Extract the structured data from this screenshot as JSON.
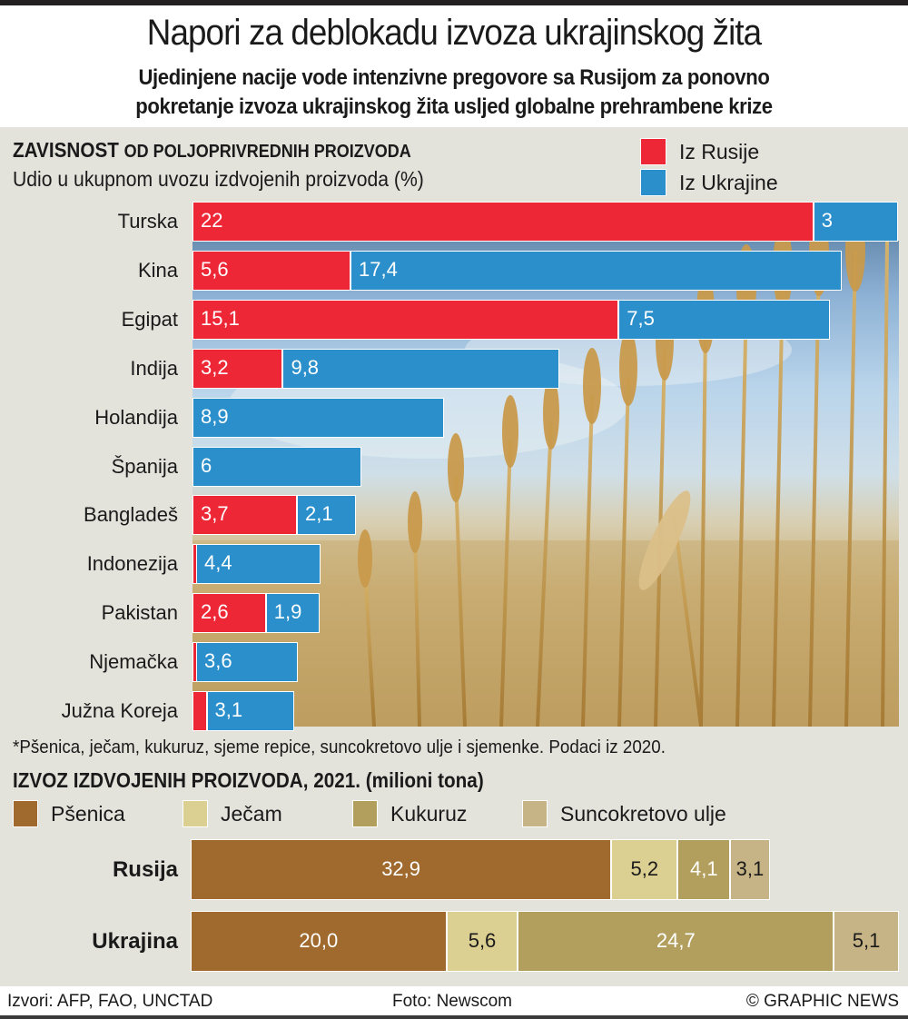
{
  "header": {
    "title": "Napori za deblokadu izvoza ukrajinskog žita",
    "subtitle_line1": "Ujedinjene nacije vode intenzivne pregovore sa Rusijom za ponovno",
    "subtitle_line2": "pokretanje izvoza ukrajinskog žita usljed globalne prehrambene krize"
  },
  "colors": {
    "russia": "#ee2737",
    "ukraine": "#2b8fcc",
    "psenica": "#a06a2e",
    "jecam": "#dccf92",
    "kukuruz": "#b39f5d",
    "suncokretovo_ulje": "#c7b486",
    "panel": "#e3e3dc"
  },
  "chart_data": [
    {
      "type": "bar",
      "orientation": "horizontal",
      "stacked": true,
      "title": "ZAVISNOST OD POLJOPRIVREDNIH PROIZVODA",
      "title_bold_part": "ZAVISNOST",
      "title_rest": "OD POLJOPRIVREDNIH PROIZVODA",
      "subtitle": "Udio u ukupnom uvozu izdvojenih proizvoda (%)",
      "legend": [
        "Iz Rusije",
        "Iz Ukrajine"
      ],
      "legend_position": "top-right",
      "categories": [
        "Turska",
        "Kina",
        "Egipat",
        "Indija",
        "Holandija",
        "Španija",
        "Bangladeš",
        "Indonezija",
        "Pakistan",
        "Njemačka",
        "Južna Koreja"
      ],
      "series": [
        {
          "name": "Iz Rusije",
          "values": [
            22,
            5.6,
            15.1,
            3.2,
            0,
            0,
            3.7,
            0.1,
            2.6,
            0.1,
            0.5
          ],
          "labels": [
            "22",
            "5,6",
            "15,1",
            "3,2",
            "",
            "",
            "3,7",
            "",
            "2,6",
            "",
            ""
          ]
        },
        {
          "name": "Iz Ukrajine",
          "values": [
            3,
            17.4,
            7.5,
            9.8,
            8.9,
            6,
            2.1,
            4.4,
            1.9,
            3.6,
            3.1
          ],
          "labels": [
            "3",
            "17,4",
            "7,5",
            "9,8",
            "8,9",
            "6",
            "2,1",
            "4,4",
            "1,9",
            "3,6",
            "3,1"
          ]
        }
      ],
      "xlim": [
        0,
        25
      ],
      "footnote": "*Pšenica, ječam, kukuruz, sjeme repice,  suncokretovo ulje i sjemenke. Podaci iz 2020."
    },
    {
      "type": "bar",
      "orientation": "horizontal",
      "stacked": true,
      "title": "IZVOZ IZDVOJENIH PROIZVODA, 2021.",
      "unit": "(milioni tona)",
      "legend": [
        "Pšenica",
        "Ječam",
        "Kukuruz",
        "Suncokretovo ulje"
      ],
      "legend_position": "top-left",
      "categories": [
        "Rusija",
        "Ukrajina"
      ],
      "series": [
        {
          "name": "Pšenica",
          "values": [
            32.9,
            20.0
          ],
          "labels": [
            "32,9",
            "20,0"
          ]
        },
        {
          "name": "Ječam",
          "values": [
            5.2,
            5.6
          ],
          "labels": [
            "5,2",
            "5,6"
          ]
        },
        {
          "name": "Kukuruz",
          "values": [
            4.1,
            24.7
          ],
          "labels": [
            "4,1",
            "24,7"
          ]
        },
        {
          "name": "Suncokretovo ulje",
          "values": [
            3.1,
            5.1
          ],
          "labels": [
            "3,1",
            "5,1"
          ]
        }
      ],
      "xlim": [
        0,
        55.4
      ]
    }
  ],
  "footer": {
    "sources": "Izvori: AFP, FAO, UNCTAD",
    "photo": "Foto: Newscom",
    "copyright": "© GRAPHIC NEWS"
  }
}
